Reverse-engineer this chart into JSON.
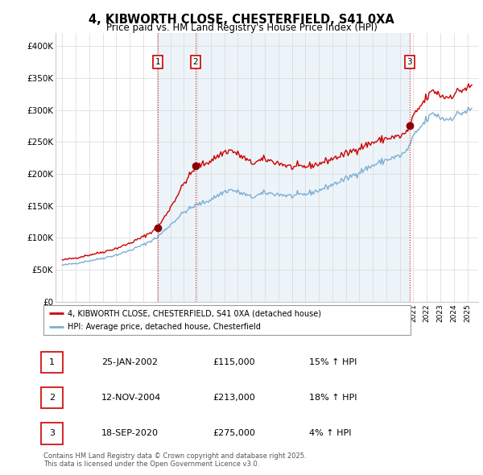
{
  "title": "4, KIBWORTH CLOSE, CHESTERFIELD, S41 0XA",
  "subtitle": "Price paid vs. HM Land Registry's House Price Index (HPI)",
  "ylim": [
    0,
    420000
  ],
  "yticks": [
    0,
    50000,
    100000,
    150000,
    200000,
    250000,
    300000,
    350000,
    400000
  ],
  "ytick_labels": [
    "£0",
    "£50K",
    "£100K",
    "£150K",
    "£200K",
    "£250K",
    "£300K",
    "£350K",
    "£400K"
  ],
  "hpi_color": "#7bafd4",
  "price_color": "#cc0000",
  "vline_color": "#cc0000",
  "shade_color": "#daeaf5",
  "background_color": "#f5f5f5",
  "purchases": [
    {
      "label": "1",
      "date_num": 2002.07,
      "price": 115000,
      "date_str": "25-JAN-2002",
      "pct": "15%",
      "dir": "↑"
    },
    {
      "label": "2",
      "date_num": 2004.87,
      "price": 213000,
      "date_str": "12-NOV-2004",
      "pct": "18%",
      "dir": "↑"
    },
    {
      "label": "3",
      "date_num": 2020.72,
      "price": 275000,
      "date_str": "18-SEP-2020",
      "pct": "4%",
      "dir": "↑"
    }
  ],
  "legend_line1": "4, KIBWORTH CLOSE, CHESTERFIELD, S41 0XA (detached house)",
  "legend_line2": "HPI: Average price, detached house, Chesterfield",
  "footer": "Contains HM Land Registry data © Crown copyright and database right 2025.\nThis data is licensed under the Open Government Licence v3.0.",
  "table_rows": [
    [
      "1",
      "25-JAN-2002",
      "£115,000",
      "15% ↑ HPI"
    ],
    [
      "2",
      "12-NOV-2004",
      "£213,000",
      "18% ↑ HPI"
    ],
    [
      "3",
      "18-SEP-2020",
      "£275,000",
      "4% ↑ HPI"
    ]
  ],
  "xlim_start": 1994.5,
  "xlim_end": 2025.8
}
